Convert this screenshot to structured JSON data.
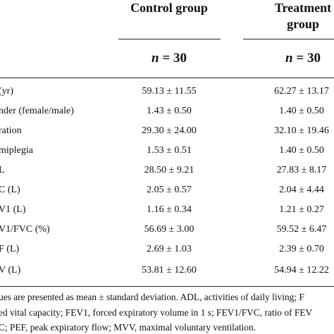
{
  "header": {
    "control_label": "Control group",
    "treatment_label_line1": "Treatment",
    "treatment_label_line2": "group",
    "n_prefix": "n",
    "control_n": " = 30",
    "treatment_n": " = 30"
  },
  "rows": [
    {
      "label": "  (yr)",
      "control": "59.13 ± 11.55",
      "treatment": "62.27 ± 13.17"
    },
    {
      "label": "nder (female/male)",
      "control": "1.43 ± 0.50",
      "treatment": "1.40 ± 0.50"
    },
    {
      "label": "ration",
      "control": "29.30 ± 24.00",
      "treatment": "32.10 ± 19.46"
    },
    {
      "label": "miplegia",
      "control": "1.53 ± 0.51",
      "treatment": "1.40 ± 0.50"
    },
    {
      "label": "L",
      "control": "28.50 ± 9.21",
      "treatment": "27.83 ± 8.17"
    },
    {
      "label": "C (L)",
      "control": "2.05 ± 0.57",
      "treatment": "2.04 ± 4.44"
    },
    {
      "label": "V1 (L)",
      "control": "1.16 ± 0.34",
      "treatment": "1.21 ± 0.27"
    },
    {
      "label": "V1/FVC (%)",
      "control": "56.69 ± 3.00",
      "treatment": "59.52 ± 6.47"
    },
    {
      "label": "F (L)",
      "control": "2.69 ± 1.03",
      "treatment": "2.39 ± 0.70"
    },
    {
      "label": "V (L)",
      "control": "53.81 ± 12.60",
      "treatment": "54.94 ± 12.22"
    }
  ],
  "footnote": {
    "line1": "ues are presented as mean ± standard deviation. ADL, activities of daily living; F",
    "line2": "ed vital capacity; FEV1, forced expiratory volume in 1 s; FEV1/FVC, ratio of FEV",
    "line3": "C; PEF, peak expiratory flow; MVV, maximal voluntary ventilation."
  }
}
